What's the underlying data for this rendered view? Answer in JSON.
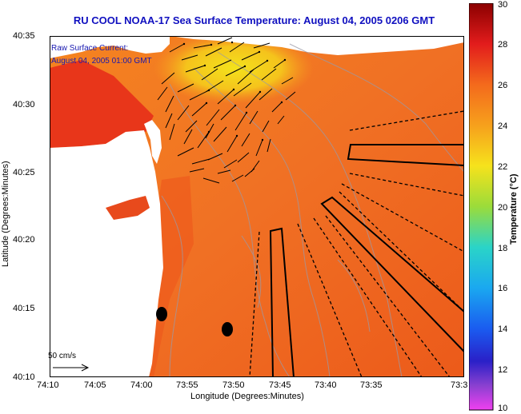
{
  "title": "RU COOL  NOAA-17  Sea Surface Temperature:  August 04, 2005 0206 GMT",
  "annotation": {
    "line1": "Raw Surface Current:",
    "line2": "August 04, 2005 01:00 GMT"
  },
  "scale": {
    "label": "50 cm/s"
  },
  "axes": {
    "xlabel": "Longitude (Degrees:Minutes)",
    "ylabel": "Latitude (Degrees:Minutes)",
    "xticks": [
      "74:10",
      "74:05",
      "74:00",
      "73:55",
      "73:50",
      "73:45",
      "73:40",
      "73:35",
      "73:3"
    ],
    "yticks": [
      "40:35",
      "40:30",
      "40:25",
      "40:20",
      "40:15",
      "40:10"
    ]
  },
  "colorbar": {
    "label": "Temperature (°C)",
    "ticks": [
      "30",
      "28",
      "26",
      "24",
      "22",
      "20",
      "18",
      "16",
      "14",
      "12",
      "10"
    ],
    "min": 10,
    "max": 30
  },
  "colors": {
    "title": "#1010c0",
    "annotation": "#1818b0",
    "sea": "#f06a1e",
    "sea_warm": "#e8401a",
    "land": "#ffffff"
  }
}
